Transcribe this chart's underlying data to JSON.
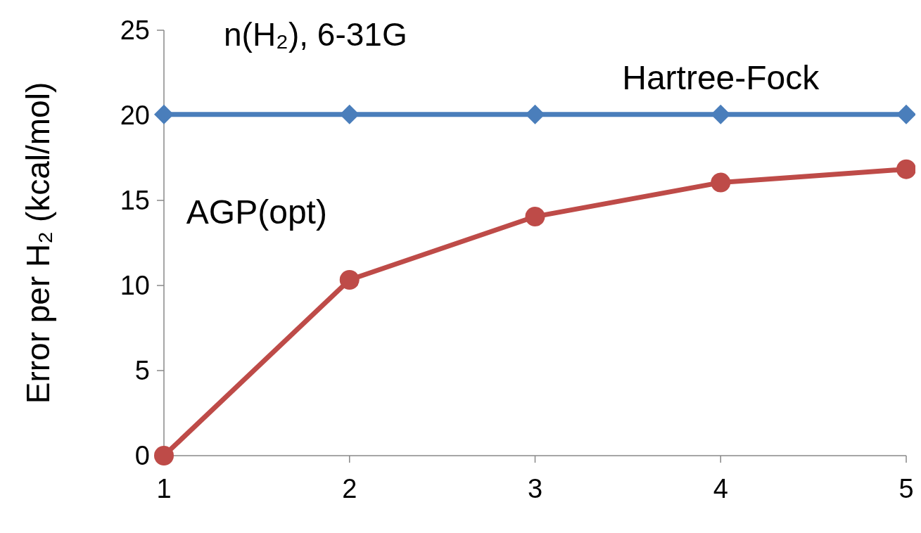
{
  "chart_data": {
    "type": "line",
    "title": "n(H₂), 6-31G",
    "ylabel": "Error per H₂ (kcal/mol)",
    "x": [
      1,
      2,
      3,
      4,
      5
    ],
    "xlim": [
      1,
      5
    ],
    "xticks": [
      1,
      2,
      3,
      4,
      5
    ],
    "ylim": [
      0,
      25
    ],
    "yticks": [
      0,
      5,
      10,
      15,
      20,
      25
    ],
    "grid": false,
    "series": [
      {
        "name": "Hartree-Fock",
        "color": "#4a7ebb",
        "marker": "diamond",
        "values": [
          20.05,
          20.05,
          20.05,
          20.05,
          20.05
        ]
      },
      {
        "name": "AGP(opt)",
        "color": "#be4b48",
        "marker": "circle",
        "values": [
          0,
          10.33,
          14.05,
          16.05,
          16.83
        ]
      }
    ]
  }
}
